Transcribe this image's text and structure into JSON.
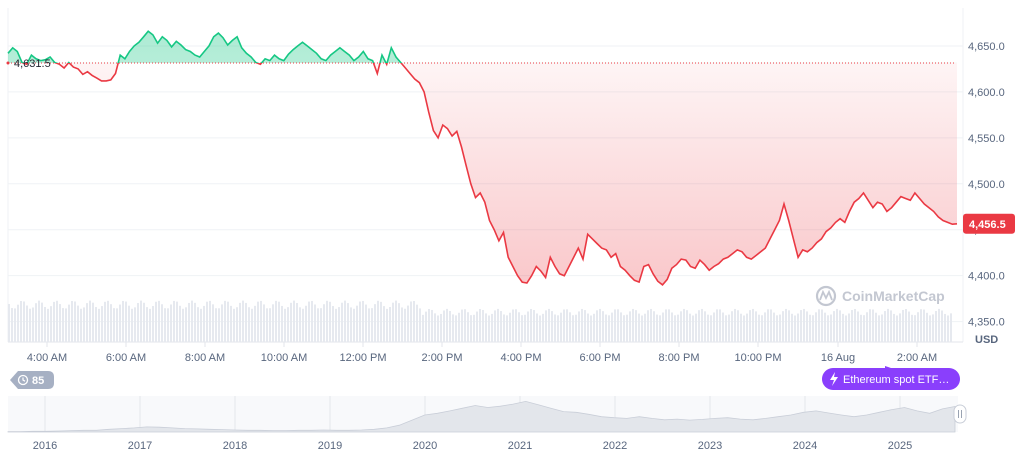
{
  "chart_data": {
    "type": "line",
    "title": "",
    "currency": "USD",
    "ylim": [
      4330,
      4700
    ],
    "y_ticks": [
      "4,650.0",
      "4,600.0",
      "4,550.0",
      "4,500.0",
      "4,450.0",
      "4,400.0",
      "4,350.0"
    ],
    "y_tick_values": [
      4650,
      4600,
      4550,
      4500,
      4450,
      4400,
      4350
    ],
    "x_ticks": [
      "4:00 AM",
      "6:00 AM",
      "8:00 AM",
      "10:00 AM",
      "12:00 PM",
      "2:00 PM",
      "4:00 PM",
      "6:00 PM",
      "8:00 PM",
      "10:00 PM",
      "16 Aug",
      "2:00 AM"
    ],
    "baseline_value": 4631.5,
    "baseline_label": "4,631.5",
    "current_value": 4456.5,
    "current_label": "4,456.5",
    "colors": {
      "above": "#16c784",
      "below": "#ea3943",
      "baseline": "#ea3943"
    },
    "series": [
      {
        "values": [
          4642,
          4648,
          4644,
          4632,
          4630,
          4640,
          4636,
          4634,
          4635,
          4638,
          4632,
          4630,
          4626,
          4632,
          4627,
          4625,
          4619,
          4622,
          4618,
          4615,
          4612,
          4612,
          4613,
          4620,
          4640,
          4636,
          4644,
          4650,
          4654,
          4660,
          4666,
          4662,
          4653,
          4660,
          4656,
          4649,
          4655,
          4651,
          4646,
          4644,
          4640,
          4638,
          4644,
          4650,
          4660,
          4664,
          4659,
          4651,
          4656,
          4660,
          4648,
          4642,
          4638,
          4632,
          4630,
          4636,
          4634,
          4640,
          4636,
          4634,
          4641,
          4646,
          4650,
          4654,
          4650,
          4646,
          4642,
          4636,
          4634,
          4640,
          4644,
          4648,
          4644,
          4640,
          4634,
          4638,
          4644,
          4636,
          4634,
          4620,
          4640,
          4630,
          4648,
          4638,
          4632,
          4626,
          4620,
          4614,
          4610,
          4600,
          4578,
          4558,
          4550,
          4564,
          4560,
          4552,
          4557,
          4540,
          4520,
          4500,
          4485,
          4490,
          4480,
          4460,
          4450,
          4438,
          4447,
          4420,
          4410,
          4400,
          4393,
          4392,
          4400,
          4410,
          4405,
          4398,
          4420,
          4410,
          4402,
          4400,
          4410,
          4420,
          4430,
          4418,
          4445,
          4440,
          4435,
          4430,
          4428,
          4420,
          4424,
          4410,
          4406,
          4400,
          4395,
          4393,
          4410,
          4412,
          4402,
          4394,
          4390,
          4396,
          4408,
          4412,
          4418,
          4417,
          4410,
          4408,
          4417,
          4412,
          4406,
          4410,
          4413,
          4418,
          4420,
          4424,
          4428,
          4426,
          4420,
          4418,
          4422,
          4426,
          4430,
          4440,
          4450,
          4460,
          4478,
          4460,
          4440,
          4420,
          4428,
          4426,
          4430,
          4436,
          4440,
          4448,
          4452,
          4458,
          4462,
          4458,
          4470,
          4480,
          4484,
          4490,
          4482,
          4474,
          4480,
          4478,
          4470,
          4474,
          4480,
          4486,
          4484,
          4482,
          4490,
          4484,
          4478,
          4474,
          4470,
          4464,
          4460,
          4458,
          4456,
          4456.5
        ]
      }
    ],
    "volume_level": 0.9,
    "navigator": {
      "years": [
        "2016",
        "2017",
        "2018",
        "2019",
        "2020",
        "2021",
        "2022",
        "2023",
        "2024",
        "2025"
      ],
      "values": [
        0.01,
        0.01,
        0.02,
        0.02,
        0.03,
        0.04,
        0.05,
        0.05,
        0.08,
        0.1,
        0.12,
        0.15,
        0.14,
        0.12,
        0.1,
        0.09,
        0.08,
        0.07,
        0.06,
        0.05,
        0.05,
        0.04,
        0.04,
        0.05,
        0.05,
        0.06,
        0.05,
        0.05,
        0.06,
        0.08,
        0.12,
        0.2,
        0.35,
        0.5,
        0.55,
        0.62,
        0.7,
        0.78,
        0.72,
        0.76,
        0.82,
        0.9,
        0.8,
        0.7,
        0.6,
        0.58,
        0.52,
        0.45,
        0.42,
        0.4,
        0.45,
        0.4,
        0.36,
        0.38,
        0.35,
        0.37,
        0.4,
        0.42,
        0.38,
        0.36,
        0.4,
        0.45,
        0.5,
        0.58,
        0.62,
        0.56,
        0.5,
        0.45,
        0.5,
        0.58,
        0.66,
        0.72,
        0.62,
        0.55,
        0.68,
        0.75
      ]
    }
  },
  "watermark": "CoinMarketCap",
  "events": {
    "count_label": "85",
    "news_label": "Ethereum spot ETF…"
  },
  "navigator": {
    "handle_icon": "pause-icon"
  }
}
